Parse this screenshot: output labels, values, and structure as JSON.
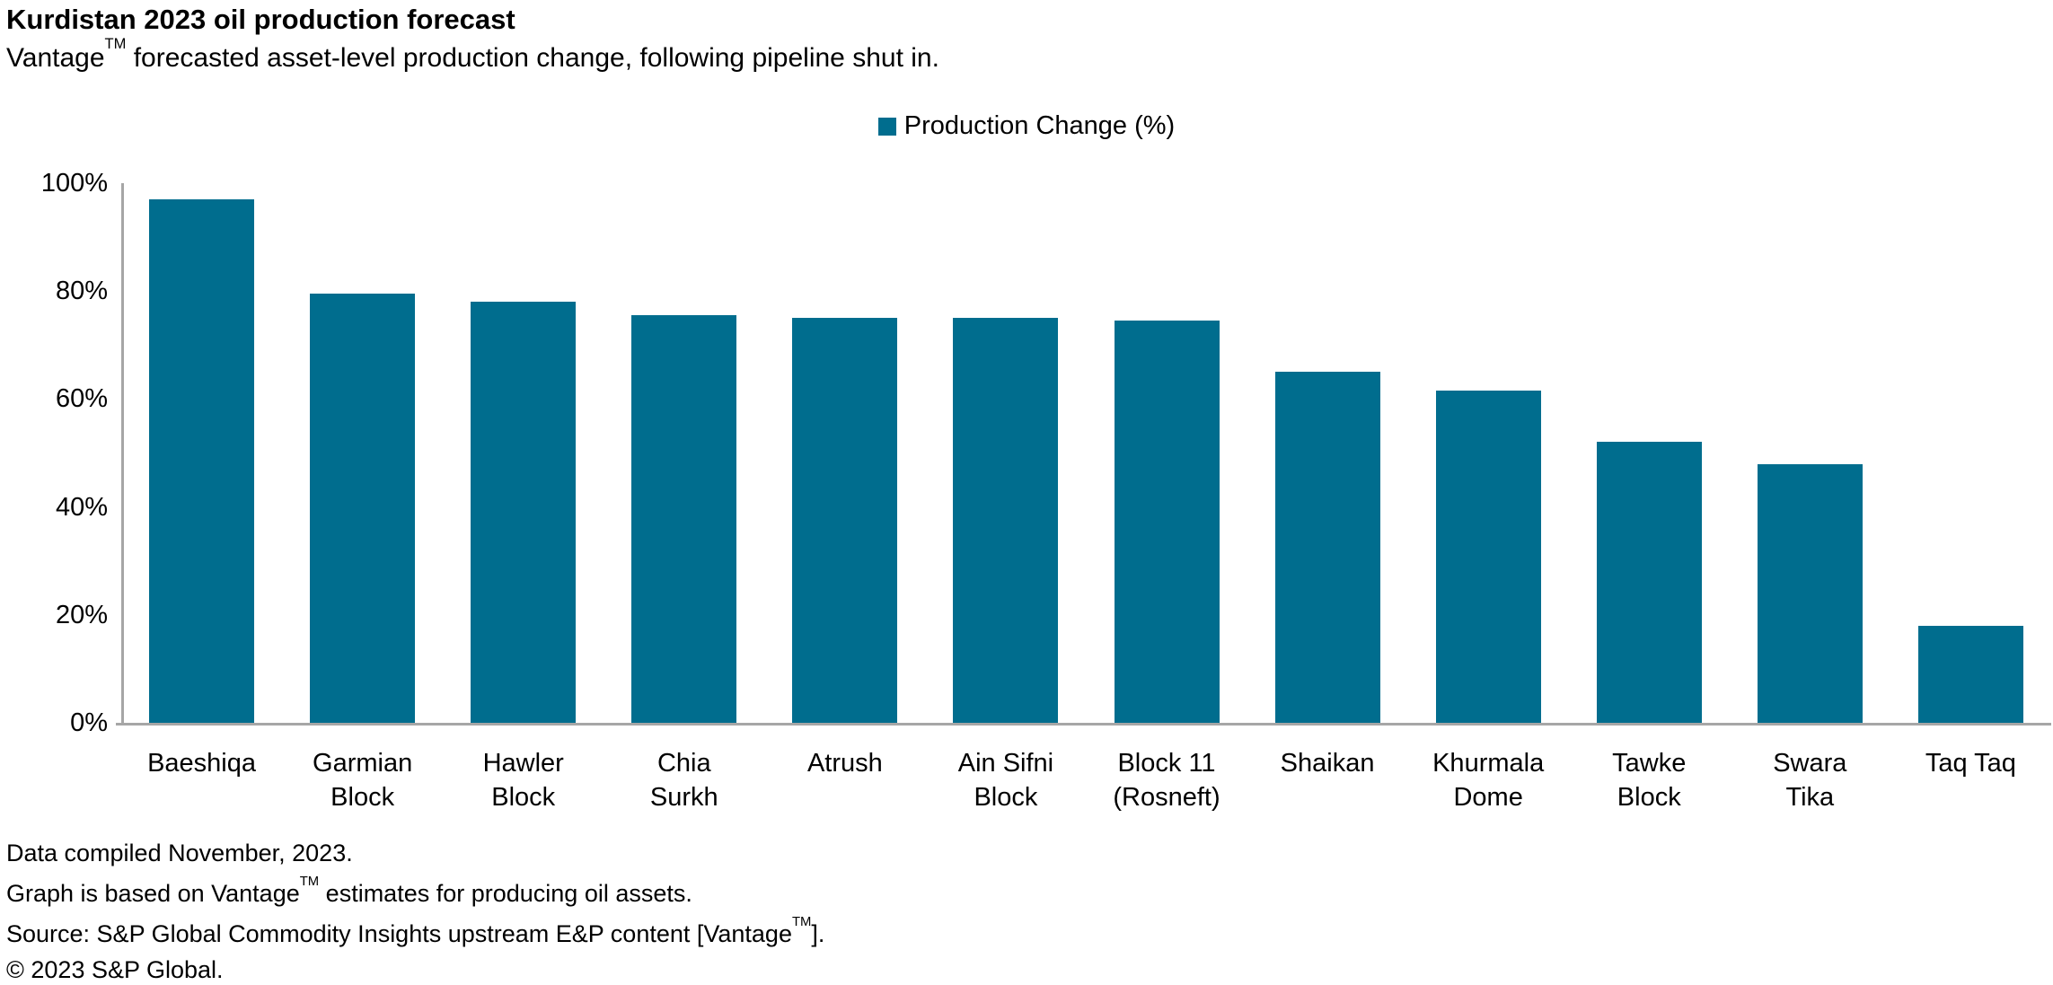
{
  "header": {
    "title": "Kurdistan 2023 oil production forecast",
    "subtitle_pre": "Vantage",
    "trademark": "TM",
    "subtitle_post": " forecasted asset-level production change, following pipeline shut in."
  },
  "legend": {
    "label": "Production Change (%)",
    "swatch_color": "#006d8e"
  },
  "chart_data": {
    "type": "bar",
    "title": "Kurdistan 2023 oil production forecast",
    "series_name": "Production Change (%)",
    "categories": [
      "Baeshiqa",
      "Garmian Block",
      "Hawler Block",
      "Chia Surkh",
      "Atrush",
      "Ain Sifni Block",
      "Block 11 (Rosneft)",
      "Shaikan",
      "Khurmala Dome",
      "Tawke Block",
      "Swara Tika",
      "Taq Taq"
    ],
    "category_lines": [
      [
        "Baeshiqa"
      ],
      [
        "Garmian",
        "Block"
      ],
      [
        "Hawler",
        "Block"
      ],
      [
        "Chia",
        "Surkh"
      ],
      [
        "Atrush"
      ],
      [
        "Ain Sifni",
        "Block"
      ],
      [
        "Block 11",
        "(Rosneft)"
      ],
      [
        "Shaikan"
      ],
      [
        "Khurmala",
        "Dome"
      ],
      [
        "Tawke",
        "Block"
      ],
      [
        "Swara",
        "Tika"
      ],
      [
        "Taq Taq"
      ]
    ],
    "values": [
      97,
      79.5,
      78,
      75.5,
      75,
      75,
      74.5,
      65,
      61.5,
      52,
      48,
      18
    ],
    "unit": "%",
    "ylim": [
      0,
      100
    ],
    "yticks": [
      "100%",
      "80%",
      "60%",
      "40%",
      "20%",
      "0%"
    ],
    "bar_color": "#006d8e",
    "axis_color": "#a6a6a6",
    "grid": false,
    "legend_position": "top-center"
  },
  "footer": {
    "line1": "Data compiled November, 2023.",
    "line2_pre": "Graph is based on Vantage",
    "line2_post": " estimates for producing oil assets.",
    "line3_pre": "Source: S&P Global Commodity Insights upstream E&P content [Vantage",
    "line3_post": "].",
    "line4": "© 2023 S&P Global.",
    "trademark": "TM"
  }
}
